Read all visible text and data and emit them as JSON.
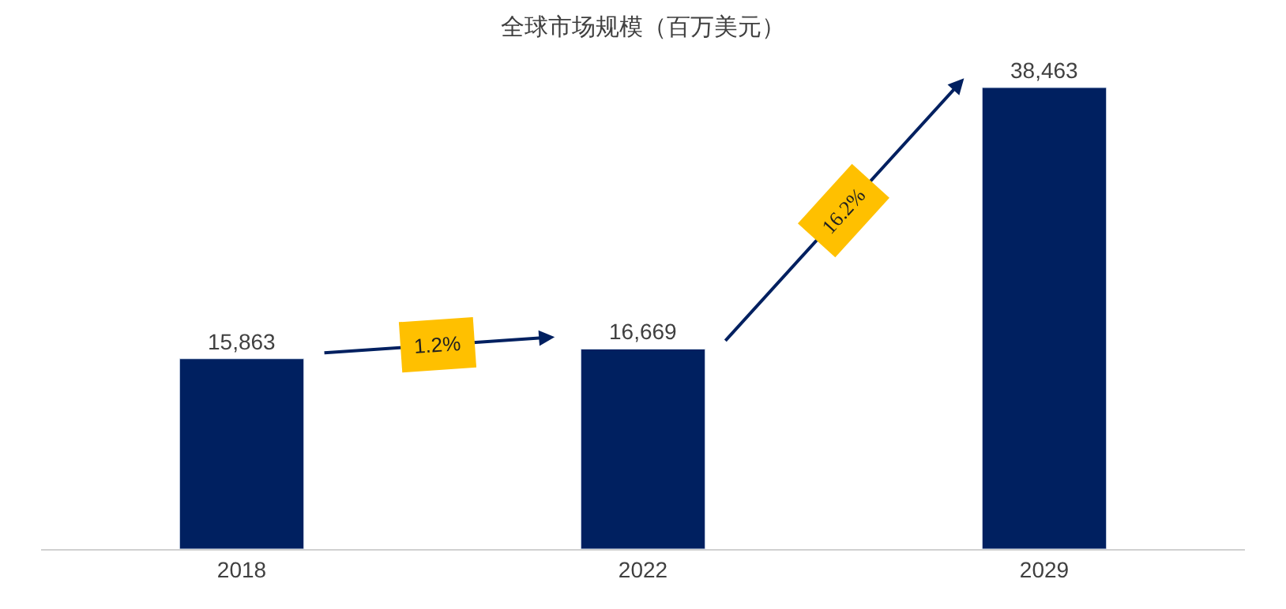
{
  "chart_data": {
    "type": "bar",
    "title": "全球市场规模（百万美元）",
    "categories": [
      "2018",
      "2022",
      "2029"
    ],
    "values": [
      15863,
      16669,
      38463
    ],
    "color": "#002060",
    "value_labels": [
      "15,863",
      "16,669",
      "38,463"
    ],
    "annotations": [
      "1.2%",
      "16.2%"
    ]
  }
}
